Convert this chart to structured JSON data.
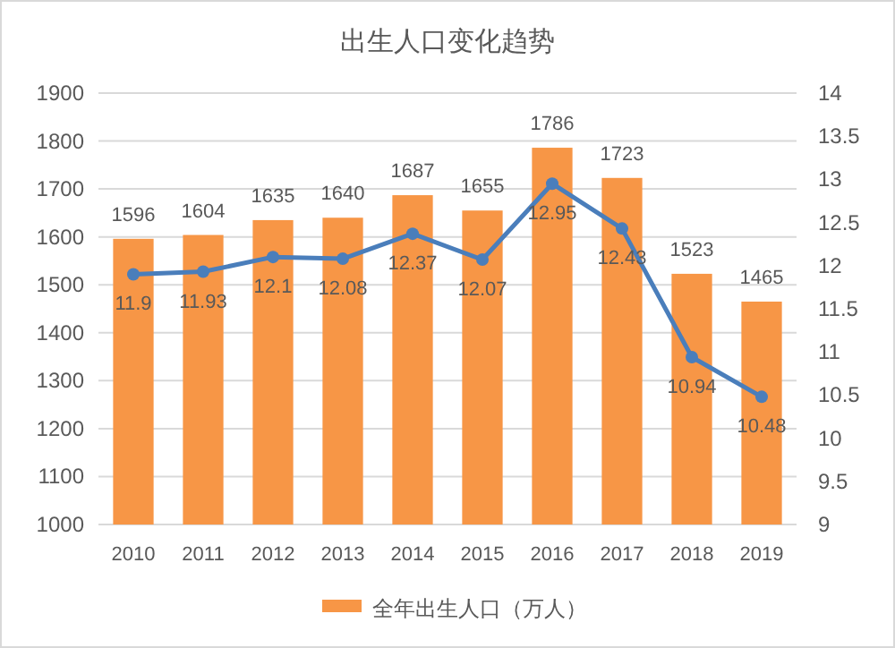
{
  "chart_data": {
    "type": "bar",
    "title": "出生人口变化趋势",
    "categories": [
      "2010",
      "2011",
      "2012",
      "2013",
      "2014",
      "2015",
      "2016",
      "2017",
      "2018",
      "2019"
    ],
    "series": [
      {
        "name": "全年出生人口（万人）",
        "color": "#f79646",
        "values": [
          1596,
          1604,
          1635,
          1640,
          1687,
          1655,
          1786,
          1723,
          1523,
          1465
        ]
      },
      {
        "type": "line",
        "axis": "y2",
        "color": "#4a7ebb",
        "values": [
          11.9,
          11.93,
          12.1,
          12.08,
          12.37,
          12.07,
          12.95,
          12.43,
          10.94,
          10.48
        ]
      }
    ],
    "ylim": [
      1000,
      1900
    ],
    "yticks": [
      1000,
      1100,
      1200,
      1300,
      1400,
      1500,
      1600,
      1700,
      1800,
      1900
    ],
    "y2lim": [
      9,
      14
    ],
    "y2ticks": [
      9,
      9.5,
      10,
      10.5,
      11,
      11.5,
      12,
      12.5,
      13,
      13.5,
      14
    ],
    "grid": "y",
    "legend": "bottom",
    "marker": "circle",
    "data_labels": true
  }
}
